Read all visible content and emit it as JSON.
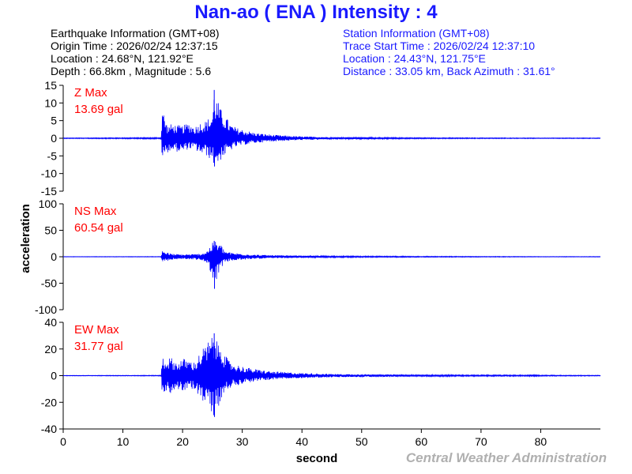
{
  "title": "Nan-ao ( ENA ) Intensity : 4",
  "earthquake": {
    "heading": "Earthquake Information  (GMT+08)",
    "origin": "Origin Time : 2026/02/24 12:37:15",
    "location": "Location : 24.68°N, 121.92°E",
    "depth": "Depth : 66.8km , Magnitude : 5.6"
  },
  "station": {
    "heading": "Station Information  (GMT+08)",
    "trace_start": "Trace Start Time : 2026/02/24 12:37:10",
    "location": "Location : 24.43°N, 121.75°E",
    "distance": "Distance : 33.05 km, Back Azimuth : 31.61°"
  },
  "credit": "Central Weather Administration",
  "colors": {
    "trace": "#0000ff",
    "title": "#1a1aff",
    "station_text": "#1a1aff",
    "max_label": "#ff0000",
    "axis": "#000000",
    "credit": "#b0b0b0"
  },
  "chart_data": {
    "type": "line",
    "xlabel": "second",
    "ylabel": "acceleration",
    "xlim": [
      0,
      90
    ],
    "xticks": [
      0,
      10,
      20,
      30,
      40,
      50,
      60,
      70,
      80
    ],
    "grid": false,
    "panels": [
      {
        "name": "Z",
        "max_label": "Z Max",
        "max_value": "13.69 gal",
        "ylim": [
          -15,
          15
        ],
        "yticks": [
          -15,
          -10,
          -5,
          0,
          5,
          10,
          15
        ],
        "envelope": {
          "t": [
            0,
            16.4,
            16.6,
            17,
            17.5,
            18,
            19,
            20,
            21,
            22,
            23,
            24,
            25,
            25.3,
            25.8,
            26.5,
            27,
            28,
            29,
            30,
            32,
            35,
            40,
            45,
            50,
            55,
            60,
            70,
            80,
            90
          ],
          "up": [
            0.1,
            0.2,
            9.5,
            6,
            3.5,
            4,
            3.8,
            3.5,
            4.5,
            3.2,
            4.5,
            5,
            7,
            13.69,
            11,
            8,
            7,
            4,
            3,
            2.5,
            1.6,
            1.0,
            0.5,
            0.35,
            0.28,
            0.2,
            0.16,
            0.13,
            0.1,
            0.1
          ],
          "lo": [
            -0.1,
            -0.2,
            -6.5,
            -5,
            -4,
            -3.5,
            -3.8,
            -4,
            -3,
            -3.2,
            -4.5,
            -5,
            -6.5,
            -8,
            -7.5,
            -6,
            -5,
            -3.5,
            -2.5,
            -2,
            -1.4,
            -0.9,
            -0.5,
            -0.35,
            -0.28,
            -0.2,
            -0.16,
            -0.13,
            -0.1,
            -0.1
          ]
        }
      },
      {
        "name": "NS",
        "max_label": "NS Max",
        "max_value": "60.54 gal",
        "ylim": [
          -100,
          100
        ],
        "yticks": [
          -100,
          -50,
          0,
          50,
          100
        ],
        "envelope": {
          "t": [
            0,
            16.4,
            16.6,
            17,
            18,
            19,
            20,
            21,
            22,
            23,
            24,
            25,
            25.3,
            25.8,
            26.5,
            27,
            28,
            30,
            32,
            35,
            40,
            45,
            50,
            60,
            70,
            80,
            90
          ],
          "up": [
            0.4,
            0.5,
            15,
            10,
            6,
            5,
            4.5,
            5,
            5,
            6,
            10,
            26,
            30,
            28,
            22,
            12,
            8,
            6,
            4,
            3,
            2,
            1.5,
            1.2,
            0.9,
            0.7,
            0.5,
            0.5
          ],
          "lo": [
            -0.4,
            -0.5,
            -18,
            -10,
            -6,
            -5,
            -4.5,
            -5,
            -5,
            -7,
            -12,
            -35,
            -60.54,
            -40,
            -20,
            -12,
            -8,
            -6,
            -4,
            -3,
            -2,
            -1.5,
            -1.2,
            -0.9,
            -0.7,
            -0.5,
            -0.5
          ]
        }
      },
      {
        "name": "EW",
        "max_label": "EW Max",
        "max_value": "31.77 gal",
        "ylim": [
          -40,
          40
        ],
        "yticks": [
          -40,
          -20,
          0,
          20,
          40
        ],
        "envelope": {
          "t": [
            0,
            16.4,
            16.6,
            17,
            18,
            19,
            20,
            21,
            22,
            23,
            24,
            25,
            25.3,
            25.8,
            26.5,
            27,
            28,
            30,
            32,
            35,
            40,
            45,
            50,
            60,
            70,
            78,
            78.5,
            80,
            90
          ],
          "up": [
            0.2,
            0.3,
            16,
            12,
            14,
            10,
            13,
            12,
            10,
            18,
            24,
            30,
            31.77,
            25,
            28,
            16,
            10,
            7,
            5,
            3.2,
            2,
            1.3,
            1.0,
            0.7,
            0.5,
            0.5,
            1.2,
            0.4,
            0.3
          ],
          "lo": [
            -0.2,
            -0.3,
            -15,
            -12,
            -13,
            -10,
            -12,
            -11,
            -10,
            -17,
            -22,
            -28,
            -31,
            -24,
            -20,
            -14,
            -9,
            -6,
            -4.5,
            -3,
            -1.8,
            -1.3,
            -1.0,
            -0.7,
            -0.5,
            -0.5,
            -1.2,
            -0.4,
            -0.3
          ]
        }
      }
    ]
  }
}
